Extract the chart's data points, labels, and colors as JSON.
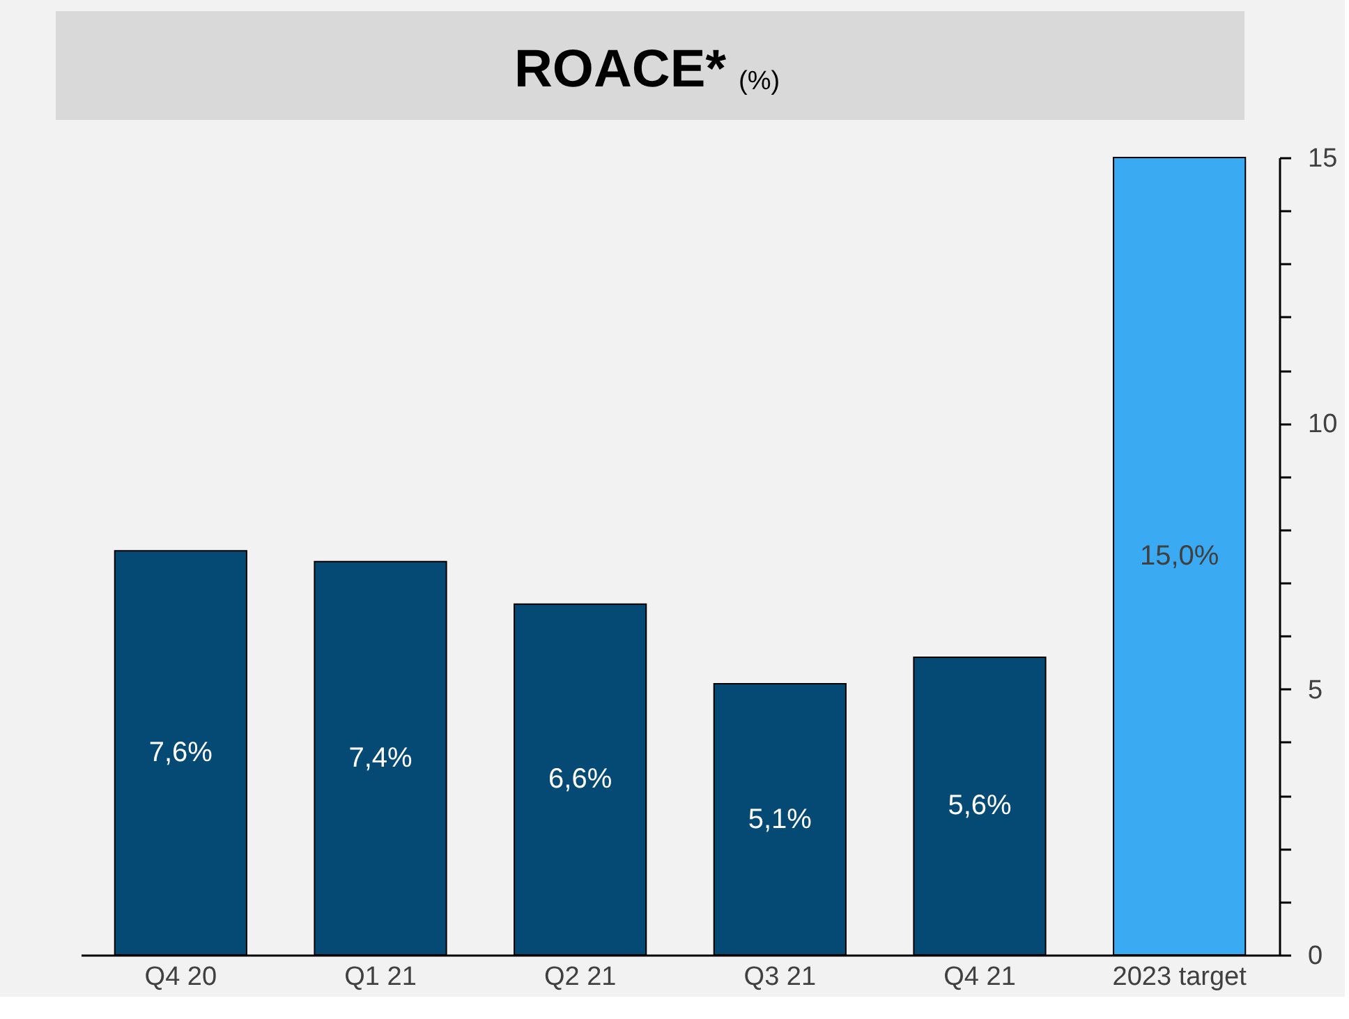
{
  "chart_data": {
    "type": "bar",
    "title": "ROACE*",
    "subtitle": "(%)",
    "categories": [
      "Q4 20",
      "Q1 21",
      "Q2 21",
      "Q3 21",
      "Q4 21",
      "2023 target"
    ],
    "values": [
      7.6,
      7.4,
      6.6,
      5.1,
      5.6,
      15.0
    ],
    "colors": [
      "#054a74",
      "#054a74",
      "#054a74",
      "#054a74",
      "#054a74",
      "#3aaaf2"
    ],
    "value_labels": [
      "7,6%",
      "7,4%",
      "6,6%",
      "5,1%",
      "5,6%",
      "15,0%"
    ],
    "ylim": [
      0,
      15
    ],
    "yticks": [
      0,
      {
        "value": 1,
        "label": null
      },
      {
        "value": 2,
        "label": null
      },
      {
        "value": 3,
        "label": null
      },
      {
        "value": 4,
        "label": null
      },
      5,
      {
        "value": 6,
        "label": null
      },
      {
        "value": 7,
        "label": null
      },
      {
        "value": 8,
        "label": null
      },
      {
        "value": 9,
        "label": null
      },
      10,
      {
        "value": 11,
        "label": null
      },
      {
        "value": 12,
        "label": null
      },
      {
        "value": 13,
        "label": null
      },
      {
        "value": 14,
        "label": null
      },
      15
    ],
    "grid": false
  }
}
